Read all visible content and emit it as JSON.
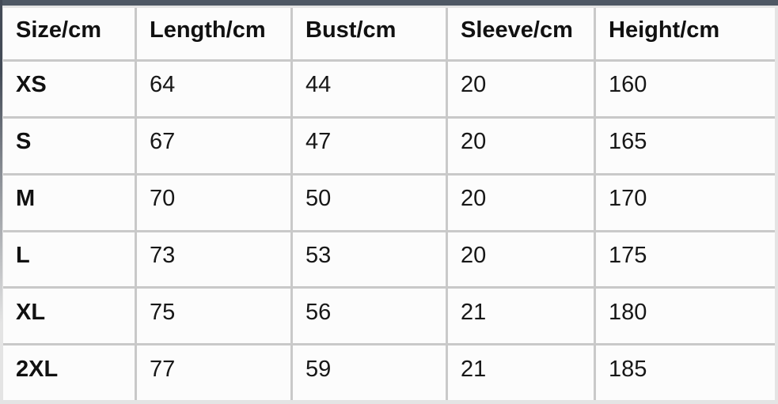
{
  "page": {
    "top_bar_color": "#4e5864",
    "background_color": "#e4e4e4",
    "cell_background": "#fcfcfc",
    "grid_line_color": "#c9c9c9",
    "text_color": "#171717"
  },
  "size_chart": {
    "columns": [
      "Size/cm",
      "Length/cm",
      "Bust/cm",
      "Sleeve/cm",
      "Height/cm"
    ],
    "rows": [
      [
        "XS",
        "64",
        "44",
        "20",
        "160"
      ],
      [
        "S",
        "67",
        "47",
        "20",
        "165"
      ],
      [
        "M",
        "70",
        "50",
        "20",
        "170"
      ],
      [
        "L",
        "73",
        "53",
        "20",
        "175"
      ],
      [
        "XL",
        "75",
        "56",
        "21",
        "180"
      ],
      [
        "2XL",
        "77",
        "59",
        "21",
        "185"
      ]
    ]
  }
}
